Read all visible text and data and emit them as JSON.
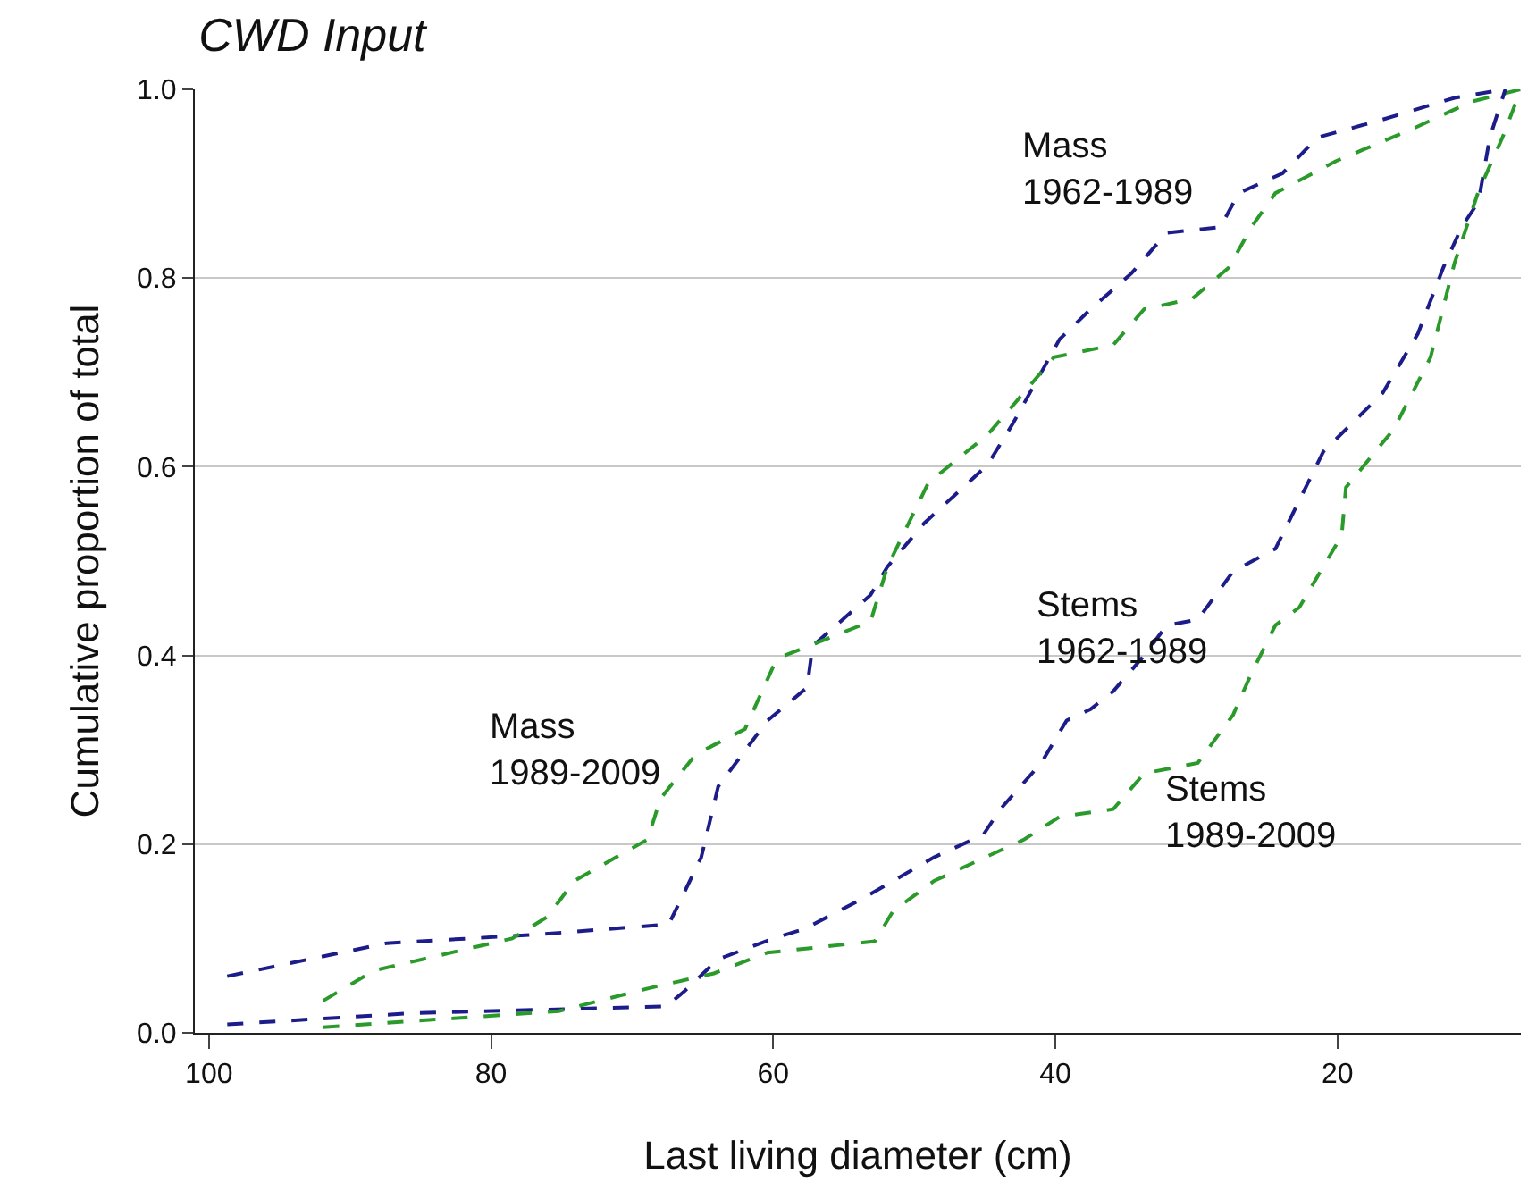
{
  "chart_data": {
    "type": "line",
    "title": "CWD Input",
    "xlabel": "Last living diameter (cm)",
    "ylabel": "Cumulative proportion of total",
    "xlim": [
      101,
      7
    ],
    "xticks": [
      100,
      80,
      60,
      40,
      20
    ],
    "ylim": [
      0,
      1
    ],
    "yticks": [
      {
        "value": 0,
        "label": "0.0"
      },
      {
        "value": 0.2,
        "label": "0.2"
      },
      {
        "value": 0.4,
        "label": "0.4"
      },
      {
        "value": 0.6,
        "label": "0.6"
      },
      {
        "value": 0.8,
        "label": "0.8"
      },
      {
        "value": 1,
        "label": "1.0"
      }
    ],
    "grid": "y",
    "legend": false,
    "marker": "none",
    "line_style": "dashed",
    "series": [
      {
        "name": "Mass 1962-1989",
        "color": "#1c1c8a",
        "x": [
          98.7,
          87.4,
          76.9,
          67.4,
          65.1,
          63.9,
          60.4,
          57.6,
          57.2,
          53.1,
          51.9,
          49.3,
          44.8,
          43,
          39.7,
          37.5,
          34.6,
          32.1,
          28.3,
          27,
          23.9,
          21.4,
          16.8,
          11.7,
          8.1
        ],
        "values": [
          0.06,
          0.095,
          0.104,
          0.115,
          0.186,
          0.261,
          0.331,
          0.366,
          0.41,
          0.464,
          0.494,
          0.54,
          0.602,
          0.646,
          0.735,
          0.767,
          0.805,
          0.848,
          0.854,
          0.89,
          0.911,
          0.949,
          0.968,
          0.991,
          1.0
        ]
      },
      {
        "name": "Mass 1989-2009",
        "color": "#2a9a2a",
        "x": [
          91.9,
          88.3,
          78.5,
          76,
          74.1,
          68.9,
          68,
          65.5,
          62,
          60,
          59.5,
          53.1,
          51.9,
          49,
          44.8,
          43,
          40.1,
          35.9,
          33.7,
          30.3,
          27.7,
          26.1,
          24.4,
          20.1,
          14.7,
          10.5,
          7
        ],
        "values": [
          0.034,
          0.066,
          0.1,
          0.123,
          0.161,
          0.205,
          0.248,
          0.295,
          0.322,
          0.388,
          0.398,
          0.436,
          0.494,
          0.583,
          0.634,
          0.665,
          0.716,
          0.729,
          0.767,
          0.778,
          0.811,
          0.854,
          0.89,
          0.924,
          0.958,
          0.987,
          1.0
        ]
      },
      {
        "name": "Stems 1962-1989",
        "color": "#1c1c8a",
        "x": [
          98.7,
          85.4,
          67.6,
          66.3,
          63.9,
          60,
          57.8,
          53.7,
          48.6,
          45.1,
          43.9,
          41,
          39.2,
          37.5,
          35.9,
          33.7,
          32.1,
          29.9,
          27.4,
          24.4,
          21,
          16.8,
          14.3,
          12.5,
          11.2,
          10,
          9.2,
          8.1
        ],
        "values": [
          0.009,
          0.021,
          0.028,
          0.044,
          0.078,
          0.1,
          0.11,
          0.142,
          0.186,
          0.21,
          0.237,
          0.286,
          0.331,
          0.343,
          0.362,
          0.4,
          0.432,
          0.438,
          0.489,
          0.513,
          0.616,
          0.678,
          0.741,
          0.811,
          0.854,
          0.881,
          0.949,
          1.0
        ]
      },
      {
        "name": "Stems 1989-2009",
        "color": "#2a9a2a",
        "x": [
          91.9,
          75.2,
          68.9,
          64.2,
          60.4,
          52.8,
          51.5,
          48.6,
          42.2,
          39.7,
          35.9,
          33.7,
          29.9,
          27.4,
          26.1,
          24.4,
          22.7,
          19.7,
          19.4,
          16,
          13.4,
          11.7,
          10,
          8.3,
          7
        ],
        "values": [
          0.006,
          0.023,
          0.047,
          0.063,
          0.085,
          0.097,
          0.129,
          0.161,
          0.205,
          0.229,
          0.237,
          0.275,
          0.286,
          0.337,
          0.381,
          0.432,
          0.451,
          0.527,
          0.578,
          0.64,
          0.716,
          0.816,
          0.892,
          0.949,
          1.0
        ]
      }
    ]
  }
}
